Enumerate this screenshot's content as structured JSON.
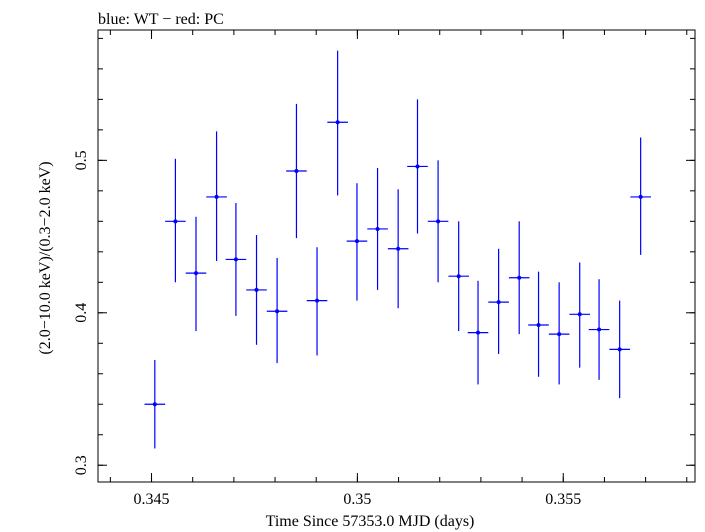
{
  "chart_data": {
    "type": "scatter",
    "title": "blue: WT − red: PC",
    "xlabel": "Time Since 57353.0 MJD (days)",
    "ylabel": "(2.0−10.0 keV)/(0.3−2.0 keV)",
    "xlim": [
      0.3437,
      0.3582
    ],
    "ylim": [
      0.289,
      0.5855
    ],
    "x_ticks": [
      {
        "value": 0.345,
        "label": "0.345"
      },
      {
        "value": 0.35,
        "label": "0.35"
      },
      {
        "value": 0.355,
        "label": "0.355"
      }
    ],
    "y_ticks": [
      {
        "value": 0.3,
        "label": "0.3"
      },
      {
        "value": 0.4,
        "label": "0.4"
      },
      {
        "value": 0.5,
        "label": "0.5"
      }
    ],
    "x_minor_step": 0.001,
    "y_minor_step": 0.02,
    "grid": false,
    "series": [
      {
        "color": "#0000ff",
        "points": [
          {
            "x": 0.34508,
            "y": 0.34,
            "xerr": 0.00025,
            "ylo": 0.311,
            "yhi": 0.369
          },
          {
            "x": 0.34558,
            "y": 0.46,
            "xerr": 0.00025,
            "ylo": 0.42,
            "yhi": 0.501
          },
          {
            "x": 0.34608,
            "y": 0.426,
            "xerr": 0.00025,
            "ylo": 0.388,
            "yhi": 0.463
          },
          {
            "x": 0.34658,
            "y": 0.476,
            "xerr": 0.00025,
            "ylo": 0.434,
            "yhi": 0.519
          },
          {
            "x": 0.34705,
            "y": 0.435,
            "xerr": 0.00025,
            "ylo": 0.398,
            "yhi": 0.472
          },
          {
            "x": 0.34755,
            "y": 0.415,
            "xerr": 0.00025,
            "ylo": 0.379,
            "yhi": 0.451
          },
          {
            "x": 0.34805,
            "y": 0.401,
            "xerr": 0.00025,
            "ylo": 0.367,
            "yhi": 0.436
          },
          {
            "x": 0.34852,
            "y": 0.493,
            "xerr": 0.00025,
            "ylo": 0.449,
            "yhi": 0.537
          },
          {
            "x": 0.34902,
            "y": 0.408,
            "xerr": 0.00025,
            "ylo": 0.372,
            "yhi": 0.443
          },
          {
            "x": 0.34952,
            "y": 0.525,
            "xerr": 0.00025,
            "ylo": 0.477,
            "yhi": 0.572
          },
          {
            "x": 0.34999,
            "y": 0.447,
            "xerr": 0.00025,
            "ylo": 0.408,
            "yhi": 0.485
          },
          {
            "x": 0.35049,
            "y": 0.455,
            "xerr": 0.00025,
            "ylo": 0.415,
            "yhi": 0.495
          },
          {
            "x": 0.35099,
            "y": 0.442,
            "xerr": 0.00025,
            "ylo": 0.403,
            "yhi": 0.481
          },
          {
            "x": 0.35146,
            "y": 0.496,
            "xerr": 0.00025,
            "ylo": 0.452,
            "yhi": 0.54
          },
          {
            "x": 0.35196,
            "y": 0.46,
            "xerr": 0.00025,
            "ylo": 0.42,
            "yhi": 0.5
          },
          {
            "x": 0.35246,
            "y": 0.424,
            "xerr": 0.00025,
            "ylo": 0.388,
            "yhi": 0.46
          },
          {
            "x": 0.35293,
            "y": 0.387,
            "xerr": 0.00025,
            "ylo": 0.353,
            "yhi": 0.421
          },
          {
            "x": 0.35343,
            "y": 0.407,
            "xerr": 0.00025,
            "ylo": 0.373,
            "yhi": 0.442
          },
          {
            "x": 0.35393,
            "y": 0.423,
            "xerr": 0.00025,
            "ylo": 0.386,
            "yhi": 0.46
          },
          {
            "x": 0.3544,
            "y": 0.392,
            "xerr": 0.00025,
            "ylo": 0.358,
            "yhi": 0.427
          },
          {
            "x": 0.3549,
            "y": 0.386,
            "xerr": 0.00025,
            "ylo": 0.353,
            "yhi": 0.42
          },
          {
            "x": 0.3554,
            "y": 0.399,
            "xerr": 0.00025,
            "ylo": 0.364,
            "yhi": 0.433
          },
          {
            "x": 0.35587,
            "y": 0.389,
            "xerr": 0.00025,
            "ylo": 0.356,
            "yhi": 0.422
          },
          {
            "x": 0.35637,
            "y": 0.376,
            "xerr": 0.00025,
            "ylo": 0.344,
            "yhi": 0.408
          },
          {
            "x": 0.35688,
            "y": 0.476,
            "xerr": 0.00025,
            "ylo": 0.438,
            "yhi": 0.515
          }
        ]
      }
    ]
  }
}
